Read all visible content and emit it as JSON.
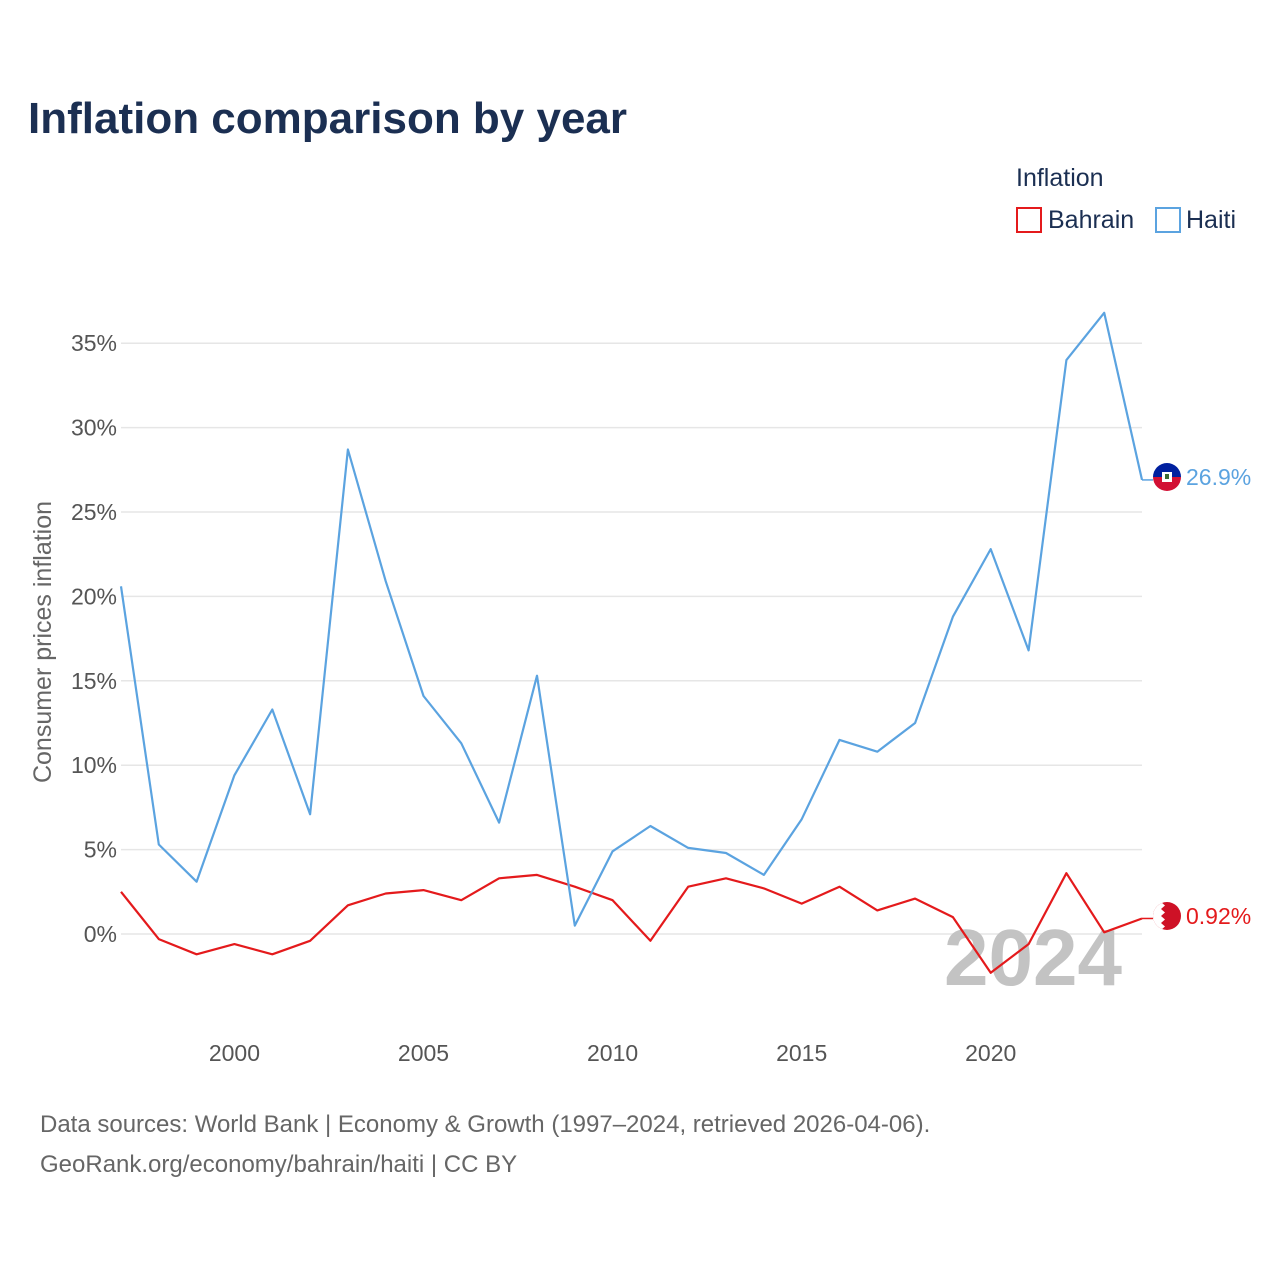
{
  "title": "Inflation comparison by year",
  "legend": {
    "title": "Inflation",
    "items": [
      {
        "name": "Bahrain",
        "color": "#e41a1c"
      },
      {
        "name": "Haiti",
        "color": "#5ba3e0"
      }
    ]
  },
  "year_watermark": "2024",
  "source": {
    "line1": "Data sources: World Bank | Economy & Growth (1997–2024, retrieved 2026-04-06).",
    "line2": "GeoRank.org/economy/bahrain/haiti | CC BY"
  },
  "end_labels": {
    "haiti": "26.9%",
    "bahrain": "0.92%"
  },
  "chart_data": {
    "type": "line",
    "title": "Inflation comparison by year",
    "xlabel": "",
    "ylabel": "Consumer prices inflation",
    "xlim": [
      1997,
      2024
    ],
    "ylim": [
      -4.5,
      37.5
    ],
    "x_ticks": [
      2000,
      2005,
      2010,
      2015,
      2020
    ],
    "x_tick_labels": [
      "2000",
      "2005",
      "2010",
      "2015",
      "2020"
    ],
    "y_ticks": [
      0,
      5,
      10,
      15,
      20,
      25,
      30,
      35
    ],
    "y_tick_labels": [
      "0%",
      "5%",
      "10%",
      "15%",
      "20%",
      "25%",
      "30%",
      "35%"
    ],
    "grid": true,
    "legend_position": "top-right",
    "x": [
      1997,
      1998,
      1999,
      2000,
      2001,
      2002,
      2003,
      2004,
      2005,
      2006,
      2007,
      2008,
      2009,
      2010,
      2011,
      2012,
      2013,
      2014,
      2015,
      2016,
      2017,
      2018,
      2019,
      2020,
      2021,
      2022,
      2023,
      2024
    ],
    "series": [
      {
        "name": "Bahrain",
        "color": "#e41a1c",
        "values": [
          2.5,
          -0.3,
          -1.2,
          -0.6,
          -1.2,
          -0.4,
          1.7,
          2.4,
          2.6,
          2.0,
          3.3,
          3.5,
          2.8,
          2.0,
          -0.4,
          2.8,
          3.3,
          2.7,
          1.8,
          2.8,
          1.4,
          2.1,
          1.0,
          -2.3,
          -0.6,
          3.6,
          0.1,
          0.92
        ]
      },
      {
        "name": "Haiti",
        "color": "#5ba3e0",
        "values": [
          20.6,
          5.3,
          3.1,
          9.4,
          13.3,
          7.1,
          28.7,
          20.9,
          14.1,
          11.3,
          6.6,
          15.3,
          0.5,
          4.9,
          6.4,
          5.1,
          4.8,
          3.5,
          6.8,
          11.5,
          10.8,
          12.5,
          18.8,
          22.8,
          16.8,
          34.0,
          36.8,
          26.9
        ]
      }
    ]
  }
}
